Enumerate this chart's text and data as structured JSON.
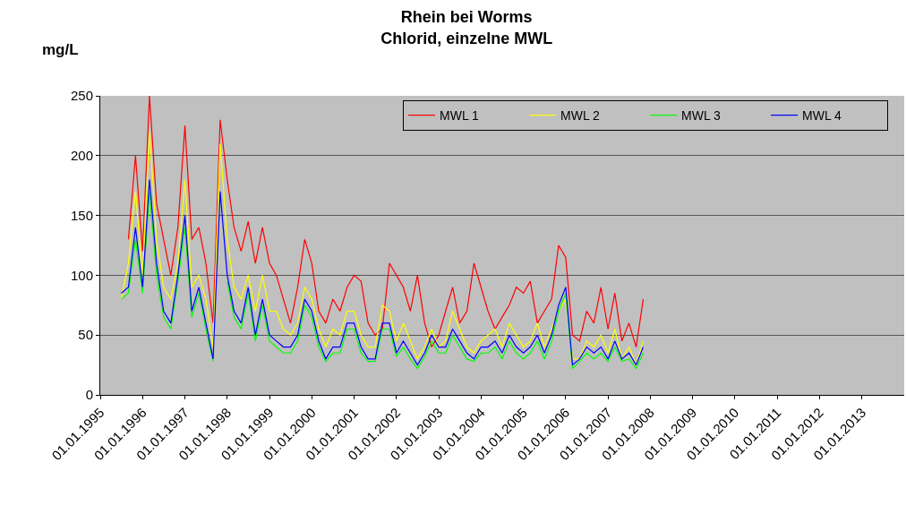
{
  "chart_data": {
    "type": "line",
    "title": "Rhein bei Worms\nChlorid, einzelne MWL",
    "ylabel": "mg/L",
    "x": [
      "1995-07",
      "1995-09",
      "1995-11",
      "1996-01",
      "1996-03",
      "1996-05",
      "1996-07",
      "1996-09",
      "1996-11",
      "1997-01",
      "1997-03",
      "1997-05",
      "1997-07",
      "1997-09",
      "1997-11",
      "1998-01",
      "1998-03",
      "1998-05",
      "1998-07",
      "1998-09",
      "1998-11",
      "1999-01",
      "1999-03",
      "1999-05",
      "1999-07",
      "1999-09",
      "1999-11",
      "2000-01",
      "2000-03",
      "2000-05",
      "2000-07",
      "2000-09",
      "2000-11",
      "2001-01",
      "2001-03",
      "2001-05",
      "2001-07",
      "2001-09",
      "2001-11",
      "2002-01",
      "2002-03",
      "2002-05",
      "2002-07",
      "2002-09",
      "2002-11",
      "2003-01",
      "2003-03",
      "2003-05",
      "2003-07",
      "2003-09",
      "2003-11",
      "2004-01",
      "2004-03",
      "2004-05",
      "2004-07",
      "2004-09",
      "2004-11",
      "2005-01",
      "2005-03",
      "2005-05",
      "2005-07",
      "2005-09",
      "2005-11",
      "2006-01",
      "2006-03",
      "2006-05",
      "2006-07",
      "2006-09",
      "2006-11",
      "2007-01",
      "2007-03",
      "2007-05",
      "2007-07",
      "2007-09",
      "2007-11"
    ],
    "series": [
      {
        "name": "MWL 1",
        "color": "#ff0000",
        "values": [
          null,
          130,
          200,
          120,
          250,
          160,
          130,
          100,
          140,
          225,
          130,
          140,
          110,
          60,
          230,
          180,
          140,
          120,
          145,
          110,
          140,
          110,
          100,
          80,
          60,
          90,
          130,
          110,
          70,
          60,
          80,
          70,
          90,
          100,
          95,
          60,
          50,
          55,
          110,
          100,
          90,
          70,
          100,
          60,
          40,
          50,
          70,
          90,
          60,
          70,
          110,
          90,
          70,
          55,
          65,
          75,
          90,
          85,
          95,
          60,
          70,
          80,
          125,
          115,
          50,
          45,
          70,
          60,
          90,
          55,
          85,
          45,
          60,
          40,
          80
        ]
      },
      {
        "name": "MWL 2",
        "color": "#ffff00",
        "values": [
          80,
          110,
          170,
          100,
          220,
          130,
          90,
          80,
          110,
          180,
          90,
          100,
          80,
          40,
          210,
          130,
          90,
          80,
          100,
          70,
          100,
          70,
          70,
          55,
          50,
          60,
          90,
          80,
          55,
          40,
          55,
          50,
          70,
          70,
          50,
          40,
          40,
          75,
          70,
          45,
          60,
          45,
          30,
          40,
          55,
          40,
          45,
          70,
          55,
          40,
          35,
          45,
          50,
          55,
          40,
          60,
          50,
          40,
          45,
          60,
          40,
          55,
          70,
          80,
          30,
          30,
          45,
          40,
          50,
          35,
          55,
          30,
          40,
          25,
          45
        ]
      },
      {
        "name": "MWL 3",
        "color": "#00ff00",
        "values": [
          80,
          85,
          130,
          85,
          170,
          100,
          65,
          55,
          95,
          140,
          65,
          85,
          55,
          28,
          null,
          95,
          65,
          55,
          85,
          45,
          75,
          45,
          40,
          35,
          35,
          45,
          75,
          65,
          40,
          28,
          35,
          35,
          55,
          55,
          35,
          28,
          28,
          55,
          55,
          32,
          40,
          30,
          22,
          32,
          45,
          35,
          35,
          50,
          40,
          30,
          28,
          35,
          35,
          40,
          30,
          45,
          35,
          30,
          35,
          45,
          30,
          45,
          70,
          85,
          22,
          28,
          35,
          30,
          35,
          28,
          40,
          28,
          30,
          22,
          35
        ]
      },
      {
        "name": "MWL 4",
        "color": "#0000ff",
        "values": [
          85,
          90,
          140,
          90,
          180,
          110,
          70,
          60,
          100,
          150,
          70,
          90,
          60,
          30,
          170,
          100,
          70,
          60,
          90,
          50,
          80,
          50,
          45,
          40,
          40,
          50,
          80,
          70,
          45,
          30,
          40,
          40,
          60,
          60,
          40,
          30,
          30,
          60,
          60,
          35,
          45,
          35,
          25,
          35,
          50,
          40,
          40,
          55,
          45,
          35,
          30,
          40,
          40,
          45,
          35,
          50,
          40,
          35,
          40,
          50,
          35,
          50,
          75,
          90,
          25,
          30,
          40,
          35,
          40,
          30,
          45,
          30,
          35,
          25,
          40
        ]
      }
    ],
    "xlim": [
      "1995-01-01",
      "2014-01-01"
    ],
    "xticks": [
      {
        "value": "1995-01-01",
        "label": "01.01.1995"
      },
      {
        "value": "1996-01-01",
        "label": "01.01.1996"
      },
      {
        "value": "1997-01-01",
        "label": "01.01.1997"
      },
      {
        "value": "1998-01-01",
        "label": "01.01.1998"
      },
      {
        "value": "1999-01-01",
        "label": "01.01.1999"
      },
      {
        "value": "2000-01-01",
        "label": "01.01.2000"
      },
      {
        "value": "2001-01-01",
        "label": "01.01.2001"
      },
      {
        "value": "2002-01-01",
        "label": "01.01.2002"
      },
      {
        "value": "2003-01-01",
        "label": "01.01.2003"
      },
      {
        "value": "2004-01-01",
        "label": "01.01.2004"
      },
      {
        "value": "2005-01-01",
        "label": "01.01.2005"
      },
      {
        "value": "2006-01-01",
        "label": "01.01.2006"
      },
      {
        "value": "2007-01-01",
        "label": "01.01.2007"
      },
      {
        "value": "2008-01-01",
        "label": "01.01.2008"
      },
      {
        "value": "2009-01-01",
        "label": "01.01.2009"
      },
      {
        "value": "2010-01-01",
        "label": "01.01.2010"
      },
      {
        "value": "2011-01-01",
        "label": "01.01.2011"
      },
      {
        "value": "2012-01-01",
        "label": "01.01.2012"
      },
      {
        "value": "2013-01-01",
        "label": "01.01.2013"
      }
    ],
    "ylim": [
      0,
      250
    ],
    "yticks": [
      0,
      50,
      100,
      150,
      200,
      250
    ],
    "grid": "y",
    "legend": "top right",
    "marker": "none",
    "line_style": "solid"
  }
}
